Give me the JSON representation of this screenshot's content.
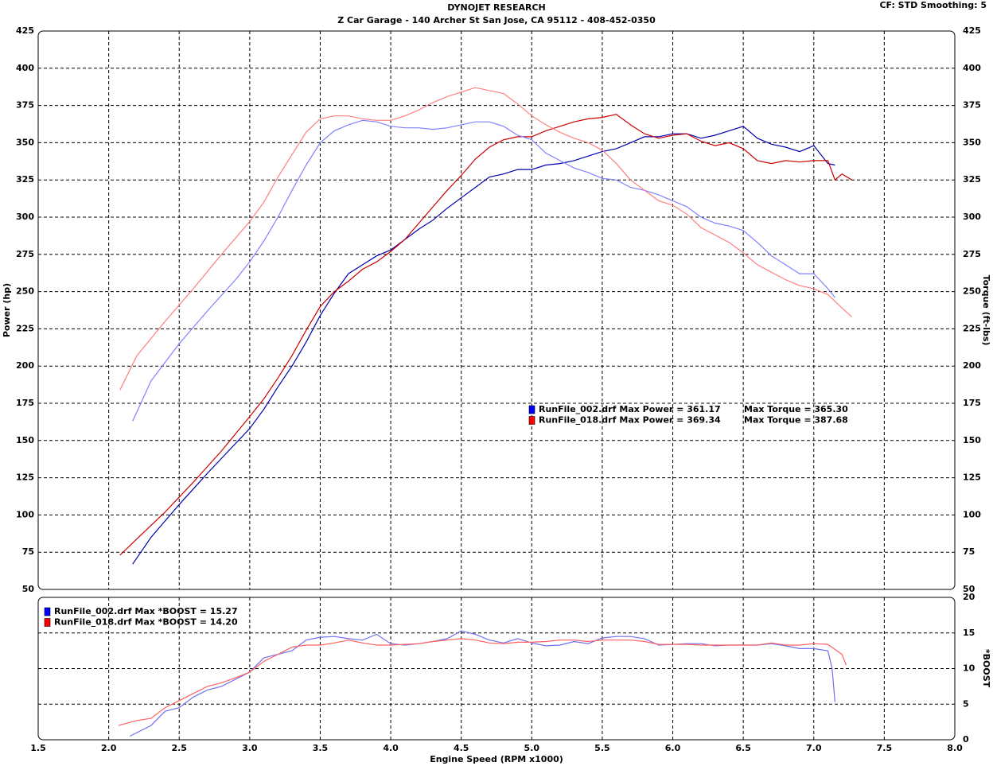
{
  "header": {
    "cf_text": "CF: STD  Smoothing: 5"
  },
  "chart_data": [
    {
      "type": "line",
      "title": "DYNOJET RESEARCH",
      "subtitle": "Z Car Garage - 140 Archer St San Jose, CA 95112 - 408-452-0350",
      "ylabel": "Power (hp)",
      "y2label": "Torque (ft-lbs)",
      "grid": true,
      "xlim": [
        1.5,
        8
      ],
      "xticks": [
        2,
        2.5,
        3,
        3.5,
        4,
        4.5,
        5,
        5.5,
        6,
        6.5,
        7,
        7.5
      ],
      "ylim": [
        50,
        425
      ],
      "yticks": [
        50,
        75,
        100,
        125,
        150,
        175,
        200,
        225,
        250,
        275,
        300,
        325,
        350,
        375,
        400,
        425
      ],
      "y2lim": [
        50,
        425
      ],
      "y2ticks": [
        50,
        75,
        100,
        125,
        150,
        175,
        200,
        225,
        250,
        275,
        300,
        325,
        350,
        375,
        400,
        425
      ],
      "legend": [
        {
          "name": "RunFile_002.drf",
          "color": "#0000ff",
          "max_power": "Max Power = 361.17",
          "max_torque": "Max Torque = 365.30"
        },
        {
          "name": "RunFile_018.drf",
          "color": "#ff0000",
          "max_power": "Max Power = 369.34",
          "max_torque": "Max Torque = 387.68"
        }
      ],
      "series": [
        {
          "color": "#0000b0",
          "axis": "y",
          "x": [
            2.17,
            2.3,
            2.5,
            2.7,
            2.9,
            3.0,
            3.1,
            3.2,
            3.3,
            3.4,
            3.5,
            3.6,
            3.7,
            3.8,
            3.9,
            4.0,
            4.1,
            4.2,
            4.3,
            4.4,
            4.5,
            4.6,
            4.7,
            4.8,
            4.9,
            5.0,
            5.1,
            5.2,
            5.3,
            5.4,
            5.5,
            5.6,
            5.7,
            5.8,
            5.9,
            6.0,
            6.1,
            6.2,
            6.3,
            6.4,
            6.5,
            6.6,
            6.7,
            6.8,
            6.9,
            7.0,
            7.1,
            7.15
          ],
          "values": [
            67,
            85,
            107,
            128,
            148,
            158,
            171,
            186,
            200,
            216,
            234,
            249,
            262,
            268,
            274,
            278,
            285,
            292,
            298,
            306,
            313,
            320,
            327,
            329,
            332,
            332,
            335,
            336,
            338,
            341,
            344,
            346,
            350,
            354,
            354,
            356,
            356,
            353,
            355,
            358,
            361,
            353,
            349,
            347,
            344,
            348,
            336,
            335
          ]
        },
        {
          "color": "#cc0000",
          "axis": "y",
          "x": [
            2.08,
            2.2,
            2.4,
            2.6,
            2.8,
            3.0,
            3.1,
            3.2,
            3.3,
            3.4,
            3.5,
            3.6,
            3.7,
            3.8,
            3.9,
            4.0,
            4.1,
            4.2,
            4.3,
            4.4,
            4.5,
            4.6,
            4.7,
            4.8,
            4.9,
            5.0,
            5.1,
            5.2,
            5.3,
            5.4,
            5.5,
            5.6,
            5.7,
            5.8,
            5.9,
            6.0,
            6.1,
            6.2,
            6.3,
            6.4,
            6.5,
            6.6,
            6.7,
            6.8,
            6.9,
            7.0,
            7.1,
            7.15,
            7.2,
            7.27
          ],
          "values": [
            73,
            84,
            102,
            122,
            143,
            166,
            178,
            192,
            207,
            224,
            240,
            250,
            257,
            265,
            270,
            277,
            285,
            296,
            307,
            318,
            328,
            339,
            347,
            352,
            354,
            354,
            358,
            361,
            364,
            366,
            367,
            369,
            362,
            356,
            353,
            355,
            356,
            351,
            348,
            350,
            346,
            338,
            336,
            338,
            337,
            338,
            338,
            325,
            329,
            325
          ]
        },
        {
          "color": "#8080ff",
          "axis": "y2",
          "x": [
            2.17,
            2.3,
            2.5,
            2.7,
            2.9,
            3.0,
            3.1,
            3.2,
            3.3,
            3.4,
            3.5,
            3.6,
            3.7,
            3.8,
            3.9,
            4.0,
            4.1,
            4.2,
            4.3,
            4.4,
            4.5,
            4.6,
            4.7,
            4.8,
            4.9,
            5.0,
            5.1,
            5.2,
            5.3,
            5.4,
            5.5,
            5.6,
            5.7,
            5.8,
            5.9,
            6.0,
            6.1,
            6.2,
            6.3,
            6.4,
            6.5,
            6.6,
            6.7,
            6.8,
            6.9,
            7.0,
            7.1,
            7.15
          ],
          "values": [
            163,
            190,
            215,
            237,
            258,
            270,
            284,
            300,
            318,
            335,
            350,
            358,
            362,
            365,
            364,
            361,
            360,
            360,
            359,
            360,
            362,
            364,
            364,
            361,
            355,
            352,
            343,
            338,
            333,
            330,
            326,
            325,
            320,
            318,
            315,
            311,
            307,
            300,
            296,
            294,
            291,
            283,
            274,
            268,
            262,
            262,
            252,
            246
          ]
        },
        {
          "color": "#ff8080",
          "axis": "y2",
          "x": [
            2.08,
            2.2,
            2.4,
            2.6,
            2.8,
            3.0,
            3.1,
            3.2,
            3.3,
            3.4,
            3.5,
            3.6,
            3.7,
            3.8,
            3.9,
            4.0,
            4.1,
            4.2,
            4.3,
            4.4,
            4.5,
            4.6,
            4.7,
            4.8,
            4.9,
            5.0,
            5.1,
            5.2,
            5.3,
            5.4,
            5.5,
            5.6,
            5.7,
            5.8,
            5.9,
            6.0,
            6.1,
            6.2,
            6.3,
            6.4,
            6.5,
            6.6,
            6.7,
            6.8,
            6.9,
            7.0,
            7.1,
            7.2,
            7.27
          ],
          "values": [
            184,
            207,
            230,
            252,
            275,
            297,
            310,
            327,
            342,
            357,
            366,
            368,
            368,
            366,
            365,
            365,
            368,
            372,
            377,
            381,
            384,
            387,
            385,
            383,
            376,
            368,
            362,
            357,
            353,
            350,
            345,
            336,
            325,
            318,
            311,
            308,
            302,
            293,
            288,
            283,
            276,
            268,
            263,
            258,
            254,
            252,
            248,
            239,
            233
          ]
        }
      ]
    },
    {
      "type": "line",
      "xlabel": "Engine Speed (RPM x1000)",
      "y2label": "*BOOST",
      "grid": true,
      "xlim": [
        1.5,
        8
      ],
      "xticks": [
        1.5,
        {
          "value": 2,
          "label": "2.0"
        },
        2.5,
        {
          "value": 3,
          "label": "3.0"
        },
        3.5,
        {
          "value": 4,
          "label": "4.0"
        },
        4.5,
        {
          "value": 5,
          "label": "5.0"
        },
        5.5,
        {
          "value": 6,
          "label": "6.0"
        },
        6.5,
        {
          "value": 7,
          "label": "7.0"
        },
        7.5,
        {
          "value": 8,
          "label": "8.0"
        }
      ],
      "y2lim": [
        0,
        20
      ],
      "y2ticks": [
        0,
        5,
        10,
        15,
        20
      ],
      "legend": [
        {
          "name": "RunFile_002.drf",
          "color": "#0000ff",
          "max_boost": "Max *BOOST = 15.27"
        },
        {
          "name": "RunFile_018.drf",
          "color": "#ff0000",
          "max_boost": "Max *BOOST = 14.20"
        }
      ],
      "series": [
        {
          "color": "#7070ee",
          "axis": "y2",
          "x": [
            2.15,
            2.3,
            2.4,
            2.5,
            2.6,
            2.7,
            2.8,
            2.9,
            3.0,
            3.1,
            3.2,
            3.3,
            3.4,
            3.5,
            3.6,
            3.7,
            3.8,
            3.9,
            4.0,
            4.1,
            4.2,
            4.3,
            4.4,
            4.5,
            4.6,
            4.7,
            4.8,
            4.9,
            5.0,
            5.1,
            5.2,
            5.3,
            5.4,
            5.5,
            5.6,
            5.7,
            5.8,
            5.9,
            6.0,
            6.1,
            6.2,
            6.3,
            6.4,
            6.5,
            6.6,
            6.7,
            6.8,
            6.9,
            7.0,
            7.1,
            7.13,
            7.15
          ],
          "values": [
            0.5,
            2,
            4,
            4.5,
            6,
            7,
            7.5,
            8.5,
            9.5,
            11.5,
            12,
            12.5,
            14,
            14.4,
            14.5,
            14.2,
            14,
            14.8,
            13.5,
            13.3,
            13.5,
            13.8,
            14.2,
            15.3,
            14.8,
            14,
            13.6,
            14.2,
            13.6,
            13.2,
            13.3,
            13.8,
            13.5,
            14.3,
            14.5,
            14.5,
            14.2,
            13.3,
            13.4,
            13.5,
            13.5,
            13.2,
            13.3,
            13.3,
            13.3,
            13.5,
            13.2,
            12.8,
            12.8,
            12.5,
            10,
            5.3
          ]
        },
        {
          "color": "#ff6060",
          "axis": "y2",
          "x": [
            2.07,
            2.2,
            2.3,
            2.4,
            2.5,
            2.6,
            2.7,
            2.8,
            2.9,
            3.0,
            3.1,
            3.2,
            3.3,
            3.4,
            3.5,
            3.6,
            3.7,
            3.8,
            3.9,
            4.0,
            4.1,
            4.2,
            4.3,
            4.4,
            4.5,
            4.6,
            4.7,
            4.8,
            4.9,
            5.0,
            5.1,
            5.2,
            5.3,
            5.4,
            5.5,
            5.6,
            5.7,
            5.8,
            5.9,
            6.0,
            6.1,
            6.2,
            6.3,
            6.4,
            6.5,
            6.6,
            6.7,
            6.8,
            6.9,
            7.0,
            7.1,
            7.2,
            7.23
          ],
          "values": [
            2,
            2.7,
            3,
            4.5,
            5.5,
            6.5,
            7.5,
            8,
            8.7,
            9.5,
            11,
            12,
            13,
            13.3,
            13.3,
            13.6,
            14,
            13.6,
            13.3,
            13.3,
            13.4,
            13.5,
            13.8,
            14,
            14.2,
            14,
            13.6,
            13.5,
            13.7,
            13.7,
            13.8,
            14,
            14,
            13.8,
            14,
            14,
            14,
            13.8,
            13.4,
            13.4,
            13.4,
            13.3,
            13.3,
            13.3,
            13.3,
            13.3,
            13.6,
            13.3,
            13.3,
            13.5,
            13.4,
            12,
            10.5
          ]
        }
      ]
    }
  ]
}
